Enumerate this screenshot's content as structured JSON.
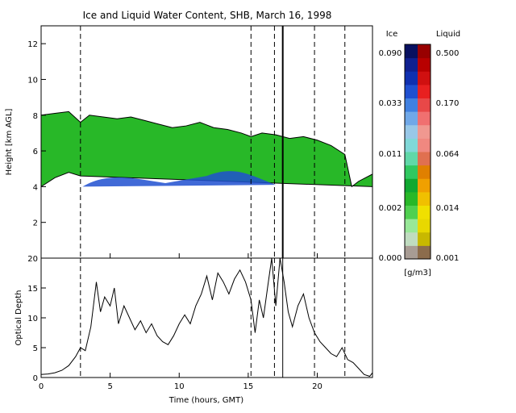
{
  "title": "Ice and Liquid Water Content, SHB, March 16, 1998",
  "colors": {
    "background": "#ffffff",
    "ice_scale": [
      "#a89c94",
      "#c0dcc0",
      "#98e898",
      "#50d050",
      "#28b828",
      "#10a830",
      "#30c860",
      "#60d8a8",
      "#80d8d8",
      "#98c8e8",
      "#70a8e8",
      "#4080e0",
      "#2050d0",
      "#1030b0",
      "#102090",
      "#081060"
    ],
    "liquid_scale": [
      "#8c6c4c",
      "#c8b800",
      "#e8d800",
      "#f0e000",
      "#f0c000",
      "#f0a000",
      "#e08000",
      "#e07050",
      "#f08880",
      "#f09890",
      "#f07070",
      "#e84848",
      "#e82020",
      "#d01010",
      "#b80000",
      "#980000"
    ]
  },
  "chart_data": [
    {
      "type": "heatmap",
      "panel": "top",
      "ylabel": "Height [km AGL]",
      "xlim": [
        0,
        24
      ],
      "ylim": [
        0,
        13
      ],
      "xticks": [
        "0",
        "5",
        "10",
        "15",
        "20"
      ],
      "yticks": [
        "2",
        "4",
        "6",
        "8",
        "10",
        "12"
      ],
      "vertical_markers_dashed": [
        2.85,
        15.2,
        16.9,
        19.8,
        22.0
      ],
      "vertical_markers_solid": [
        17.5
      ],
      "cloud_top_km": [
        [
          0,
          8.0
        ],
        [
          1,
          8.1
        ],
        [
          2,
          8.2
        ],
        [
          2.85,
          7.6
        ],
        [
          3.5,
          8.0
        ],
        [
          4.5,
          7.9
        ],
        [
          5.5,
          7.8
        ],
        [
          6.5,
          7.9
        ],
        [
          7.5,
          7.7
        ],
        [
          8.5,
          7.5
        ],
        [
          9.5,
          7.3
        ],
        [
          10.5,
          7.4
        ],
        [
          11.5,
          7.6
        ],
        [
          12.5,
          7.3
        ],
        [
          13.5,
          7.2
        ],
        [
          14.5,
          7.0
        ],
        [
          15.2,
          6.8
        ],
        [
          16,
          7.0
        ],
        [
          17,
          6.9
        ],
        [
          18,
          6.7
        ],
        [
          19,
          6.8
        ],
        [
          20,
          6.6
        ],
        [
          21,
          6.3
        ],
        [
          22,
          5.8
        ],
        [
          22.5,
          4.0
        ],
        [
          23,
          4.3
        ],
        [
          24,
          4.7
        ]
      ],
      "cloud_base_km": [
        [
          0,
          4.0
        ],
        [
          1,
          4.5
        ],
        [
          2,
          4.8
        ],
        [
          2.85,
          4.6
        ],
        [
          24,
          4.0
        ]
      ],
      "data_floor_km": 4.0,
      "colorbar_ice": {
        "label": "Ice",
        "ticks": [
          "0.000",
          "0.002",
          "0.011",
          "0.033",
          "0.090"
        ]
      },
      "colorbar_liquid": {
        "label": "Liquid",
        "ticks": [
          "0.001",
          "0.014",
          "0.064",
          "0.170",
          "0.500"
        ]
      },
      "colorbar_units": "[g/m3]"
    },
    {
      "type": "line",
      "panel": "bottom",
      "xlabel": "Time (hours, GMT)",
      "ylabel": "Optical Depth",
      "xlim": [
        0,
        24
      ],
      "ylim": [
        0,
        20
      ],
      "xticks": [
        "0",
        "5",
        "10",
        "15",
        "20"
      ],
      "yticks": [
        "0",
        "5",
        "10",
        "15",
        "20"
      ],
      "series": [
        {
          "points": [
            [
              0,
              0.5
            ],
            [
              0.5,
              0.6
            ],
            [
              1,
              0.8
            ],
            [
              1.5,
              1.2
            ],
            [
              2,
              2.0
            ],
            [
              2.5,
              3.5
            ],
            [
              2.85,
              5.0
            ],
            [
              3.2,
              4.5
            ],
            [
              3.6,
              8.5
            ],
            [
              4.0,
              16.0
            ],
            [
              4.3,
              11.0
            ],
            [
              4.6,
              13.5
            ],
            [
              5.0,
              12.0
            ],
            [
              5.3,
              15.0
            ],
            [
              5.6,
              9.0
            ],
            [
              6.0,
              12.0
            ],
            [
              6.4,
              10.0
            ],
            [
              6.8,
              8.0
            ],
            [
              7.2,
              9.5
            ],
            [
              7.6,
              7.5
            ],
            [
              8.0,
              9.0
            ],
            [
              8.4,
              7.0
            ],
            [
              8.8,
              6.0
            ],
            [
              9.2,
              5.5
            ],
            [
              9.6,
              7.0
            ],
            [
              10.0,
              9.0
            ],
            [
              10.4,
              10.5
            ],
            [
              10.8,
              9.0
            ],
            [
              11.2,
              12.0
            ],
            [
              11.6,
              14.0
            ],
            [
              12.0,
              17.0
            ],
            [
              12.4,
              13.0
            ],
            [
              12.8,
              17.5
            ],
            [
              13.2,
              16.0
            ],
            [
              13.6,
              14.0
            ],
            [
              14.0,
              16.5
            ],
            [
              14.4,
              18.0
            ],
            [
              14.8,
              16.0
            ],
            [
              15.2,
              13.0
            ],
            [
              15.5,
              7.5
            ],
            [
              15.8,
              13.0
            ],
            [
              16.1,
              10.0
            ],
            [
              16.4,
              15.0
            ],
            [
              16.7,
              20.0
            ],
            [
              17.0,
              12.0
            ],
            [
              17.3,
              20.0
            ],
            [
              17.6,
              16.0
            ],
            [
              17.9,
              11.0
            ],
            [
              18.2,
              8.5
            ],
            [
              18.6,
              12.0
            ],
            [
              19.0,
              14.0
            ],
            [
              19.4,
              10.0
            ],
            [
              19.8,
              7.5
            ],
            [
              20.2,
              6.0
            ],
            [
              20.6,
              5.0
            ],
            [
              21.0,
              4.0
            ],
            [
              21.4,
              3.5
            ],
            [
              21.8,
              5.0
            ],
            [
              22.2,
              3.0
            ],
            [
              22.6,
              2.5
            ],
            [
              23.0,
              1.5
            ],
            [
              23.4,
              0.5
            ],
            [
              23.8,
              0.2
            ],
            [
              24,
              0.8
            ]
          ]
        }
      ]
    }
  ]
}
